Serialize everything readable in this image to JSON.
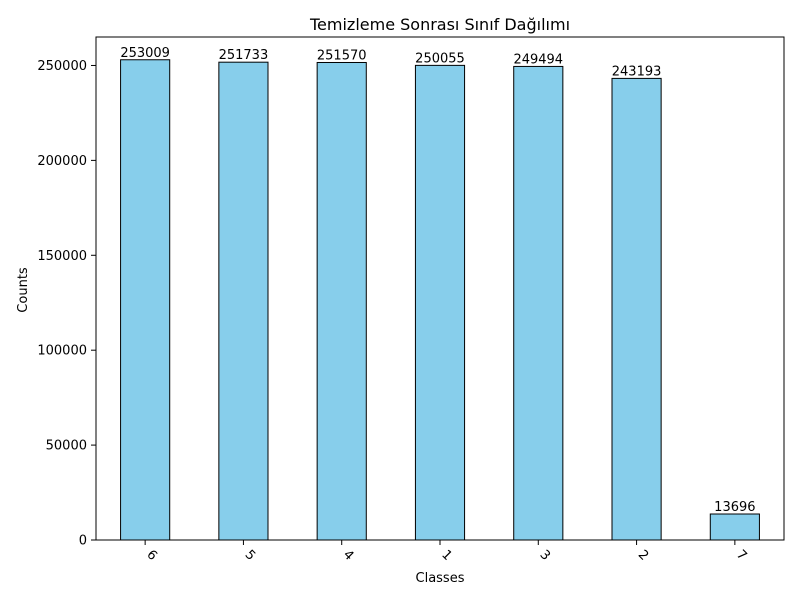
{
  "chart_data": {
    "type": "bar",
    "title": "Temizleme Sonrası Sınıf Dağılımı",
    "xlabel": "Classes",
    "ylabel": "Counts",
    "categories": [
      "6",
      "5",
      "4",
      "1",
      "3",
      "2",
      "7"
    ],
    "values": [
      253009,
      251733,
      251570,
      250055,
      249494,
      243193,
      13696
    ],
    "ylim": [
      0,
      265000
    ],
    "yticks": [
      0,
      50000,
      100000,
      150000,
      200000,
      250000
    ],
    "bar_color": "#87CEEB",
    "edge_color": "#000000",
    "grid": false,
    "legend": "none",
    "x_tick_rotation": "45"
  }
}
